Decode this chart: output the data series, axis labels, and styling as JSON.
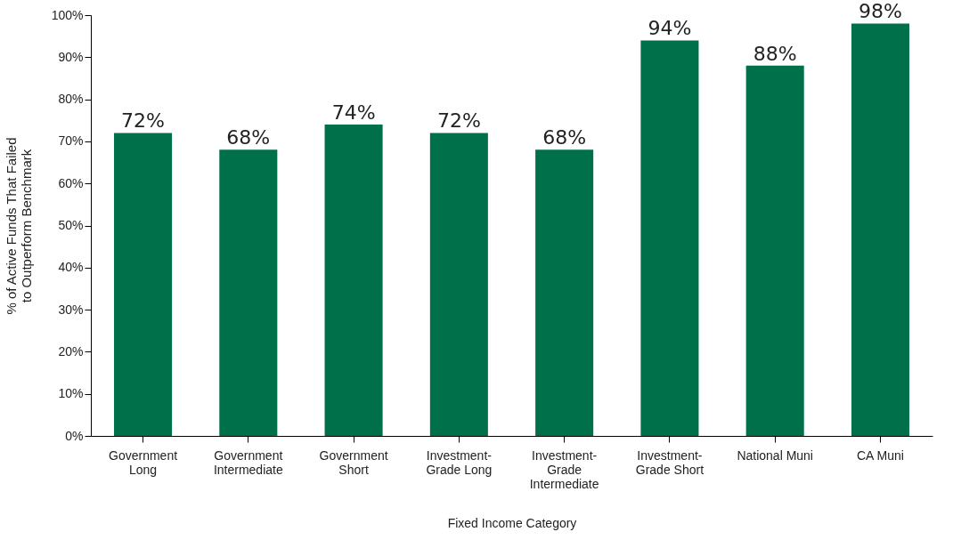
{
  "chart_data": {
    "type": "bar",
    "xlabel": "Fixed Income Category",
    "ylabel": "% of Active Funds That Failed\nto Outperform Benchmark",
    "categories": [
      "Government\nLong",
      "Government\nIntermediate",
      "Government\nShort",
      "Investment-\nGrade Long",
      "Investment-\nGrade\nIntermediate",
      "Investment-\nGrade Short",
      "National Muni",
      "CA Muni"
    ],
    "values": [
      72,
      68,
      74,
      72,
      68,
      94,
      88,
      98
    ],
    "value_labels": [
      "72%",
      "68%",
      "74%",
      "72%",
      "68%",
      "94%",
      "88%",
      "98%"
    ],
    "color": "#00704a",
    "ylim": [
      0,
      100
    ],
    "yticks": [
      {
        "value": 0,
        "label": "0%"
      },
      {
        "value": 10,
        "label": "10%"
      },
      {
        "value": 20,
        "label": "20%"
      },
      {
        "value": 30,
        "label": "30%"
      },
      {
        "value": 40,
        "label": "40%"
      },
      {
        "value": 50,
        "label": "50%"
      },
      {
        "value": 60,
        "label": "60%"
      },
      {
        "value": 70,
        "label": "70%"
      },
      {
        "value": 80,
        "label": "80%"
      },
      {
        "value": 90,
        "label": "90%"
      },
      {
        "value": 100,
        "label": "100%"
      }
    ],
    "grid": false
  }
}
